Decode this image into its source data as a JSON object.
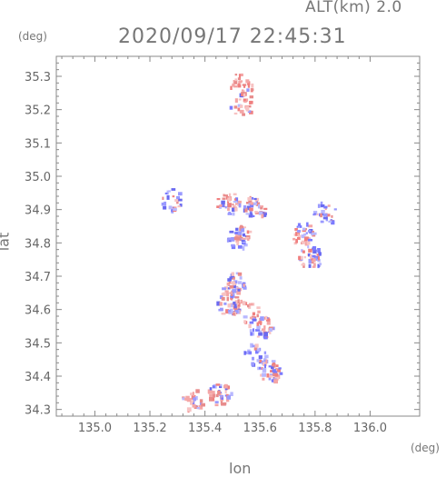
{
  "header": {
    "altitude": "ALT(km) 2.0",
    "timestamp": "2020/09/17 22:45:31"
  },
  "axes": {
    "x_unit": "(deg)",
    "y_unit": "(deg)",
    "x_title": "lon",
    "y_title": "lat"
  },
  "chart_data": {
    "type": "heatmap",
    "xlabel": "lon",
    "ylabel": "lat",
    "xlim": [
      134.86,
      136.18
    ],
    "ylim": [
      34.28,
      35.36
    ],
    "x_ticks": [
      "135.0",
      "135.2",
      "135.4",
      "135.6",
      "135.8",
      "136.0"
    ],
    "y_ticks": [
      "34.3",
      "34.4",
      "34.5",
      "34.6",
      "34.7",
      "34.8",
      "34.9",
      "35.0",
      "35.1",
      "35.2",
      "35.3"
    ],
    "grid": false,
    "colors": {
      "positive": "#f08080",
      "negative": "#7b7bff",
      "frame": "#888888"
    },
    "echo_regions": [
      {
        "lon": 135.53,
        "lat": 35.28,
        "sign": "pos"
      },
      {
        "lon": 135.53,
        "lat": 35.22,
        "sign": "pos"
      },
      {
        "lon": 135.48,
        "lat": 34.92,
        "sign": "mixed"
      },
      {
        "lon": 135.58,
        "lat": 34.91,
        "sign": "mixed"
      },
      {
        "lon": 135.52,
        "lat": 34.82,
        "sign": "mixed"
      },
      {
        "lon": 135.75,
        "lat": 34.83,
        "sign": "mixed"
      },
      {
        "lon": 135.83,
        "lat": 34.89,
        "sign": "neg"
      },
      {
        "lon": 135.78,
        "lat": 34.76,
        "sign": "mixed"
      },
      {
        "lon": 135.5,
        "lat": 34.68,
        "sign": "mixed"
      },
      {
        "lon": 135.55,
        "lat": 34.6,
        "sign": "pos"
      },
      {
        "lon": 135.48,
        "lat": 34.62,
        "sign": "mixed"
      },
      {
        "lon": 135.6,
        "lat": 34.55,
        "sign": "mixed"
      },
      {
        "lon": 135.58,
        "lat": 34.47,
        "sign": "neg"
      },
      {
        "lon": 135.63,
        "lat": 34.42,
        "sign": "mixed"
      },
      {
        "lon": 135.45,
        "lat": 34.35,
        "sign": "mixed"
      },
      {
        "lon": 135.35,
        "lat": 34.33,
        "sign": "pos"
      },
      {
        "lon": 135.27,
        "lat": 34.93,
        "sign": "neg"
      }
    ]
  }
}
